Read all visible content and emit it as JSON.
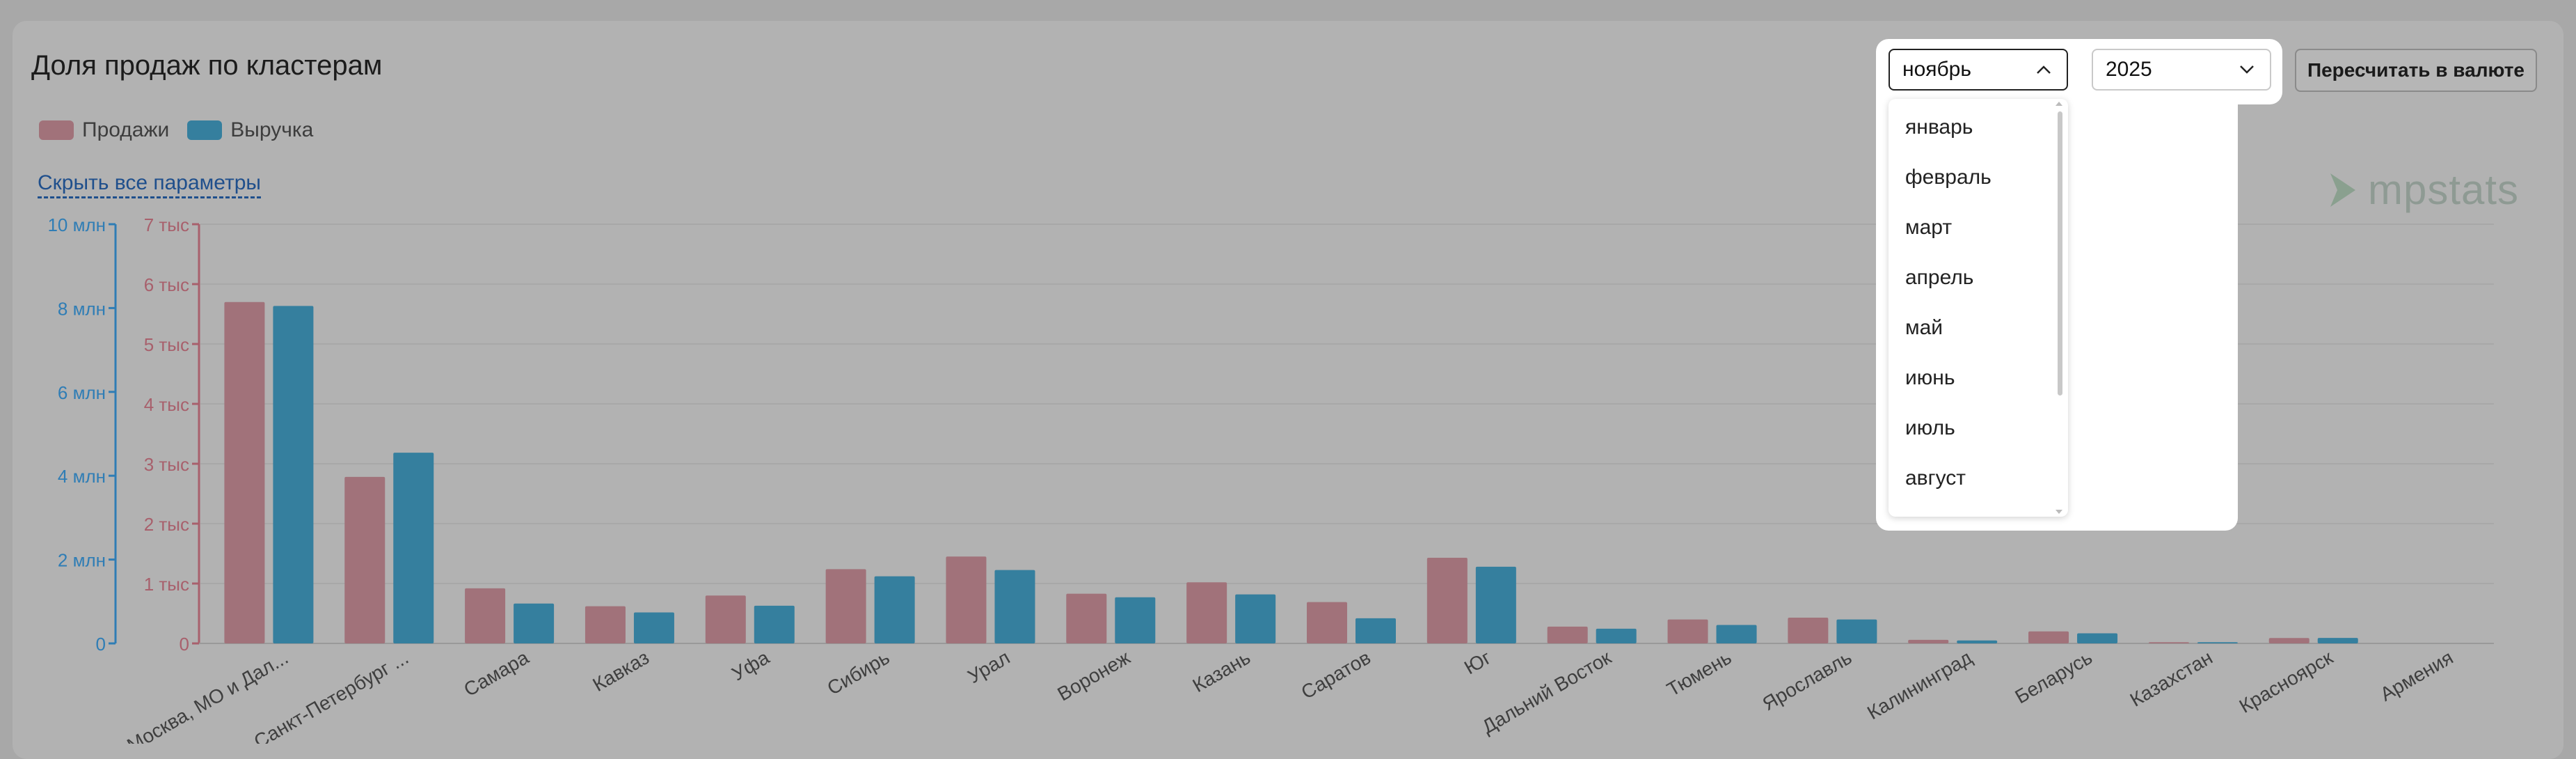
{
  "header": {
    "title": "Доля продаж по кластерам"
  },
  "legend": {
    "sales": "Продажи",
    "revenue": "Выручка"
  },
  "hide_params": "Скрыть все параметры",
  "logo": {
    "text": "mpstats"
  },
  "controls": {
    "month_value": "ноябрь",
    "year_value": "2025",
    "recalc_label": "Пересчитать в валюте",
    "month_options": [
      "январь",
      "февраль",
      "март",
      "апрель",
      "май",
      "июнь",
      "июль",
      "август"
    ]
  },
  "colors": {
    "sales": "#a1727a",
    "revenue": "#357f9e",
    "revenue_axis": "#2f7db5",
    "sales_axis": "#a8606c"
  },
  "chart_data": {
    "type": "bar",
    "categories": [
      "Москва, МО и Дал...",
      "Санкт-Петербург ...",
      "Самара",
      "Кавказ",
      "Уфа",
      "Сибирь",
      "Урал",
      "Воронеж",
      "Казань",
      "Саратов",
      "Юг",
      "Дальний Восток",
      "Тюмень",
      "Ярославль",
      "Калининград",
      "Беларусь",
      "Казахстан",
      "Красноярск",
      "Армения"
    ],
    "series": [
      {
        "name": "Продажи",
        "axis": "left-sales",
        "values": [
          5700,
          2780,
          920,
          620,
          800,
          1240,
          1450,
          830,
          1020,
          690,
          1430,
          280,
          400,
          430,
          60,
          200,
          20,
          90,
          0
        ]
      },
      {
        "name": "Выручка",
        "axis": "left-revenue",
        "values": [
          8050000,
          4550000,
          950000,
          740000,
          900000,
          1600000,
          1750000,
          1100000,
          1170000,
          600000,
          1830000,
          350000,
          440000,
          570000,
          70000,
          240000,
          30000,
          130000,
          0
        ]
      }
    ],
    "sales_axis": {
      "ticks": [
        "0",
        "1 тыс",
        "2 тыс",
        "3 тыс",
        "4 тыс",
        "5 тыс",
        "6 тыс",
        "7 тыс"
      ],
      "range": [
        0,
        7000
      ]
    },
    "revenue_axis": {
      "ticks": [
        "0",
        "2 млн",
        "4 млн",
        "6 млн",
        "8 млн",
        "10 млн"
      ],
      "range": [
        0,
        10000000
      ]
    },
    "grid": true
  }
}
